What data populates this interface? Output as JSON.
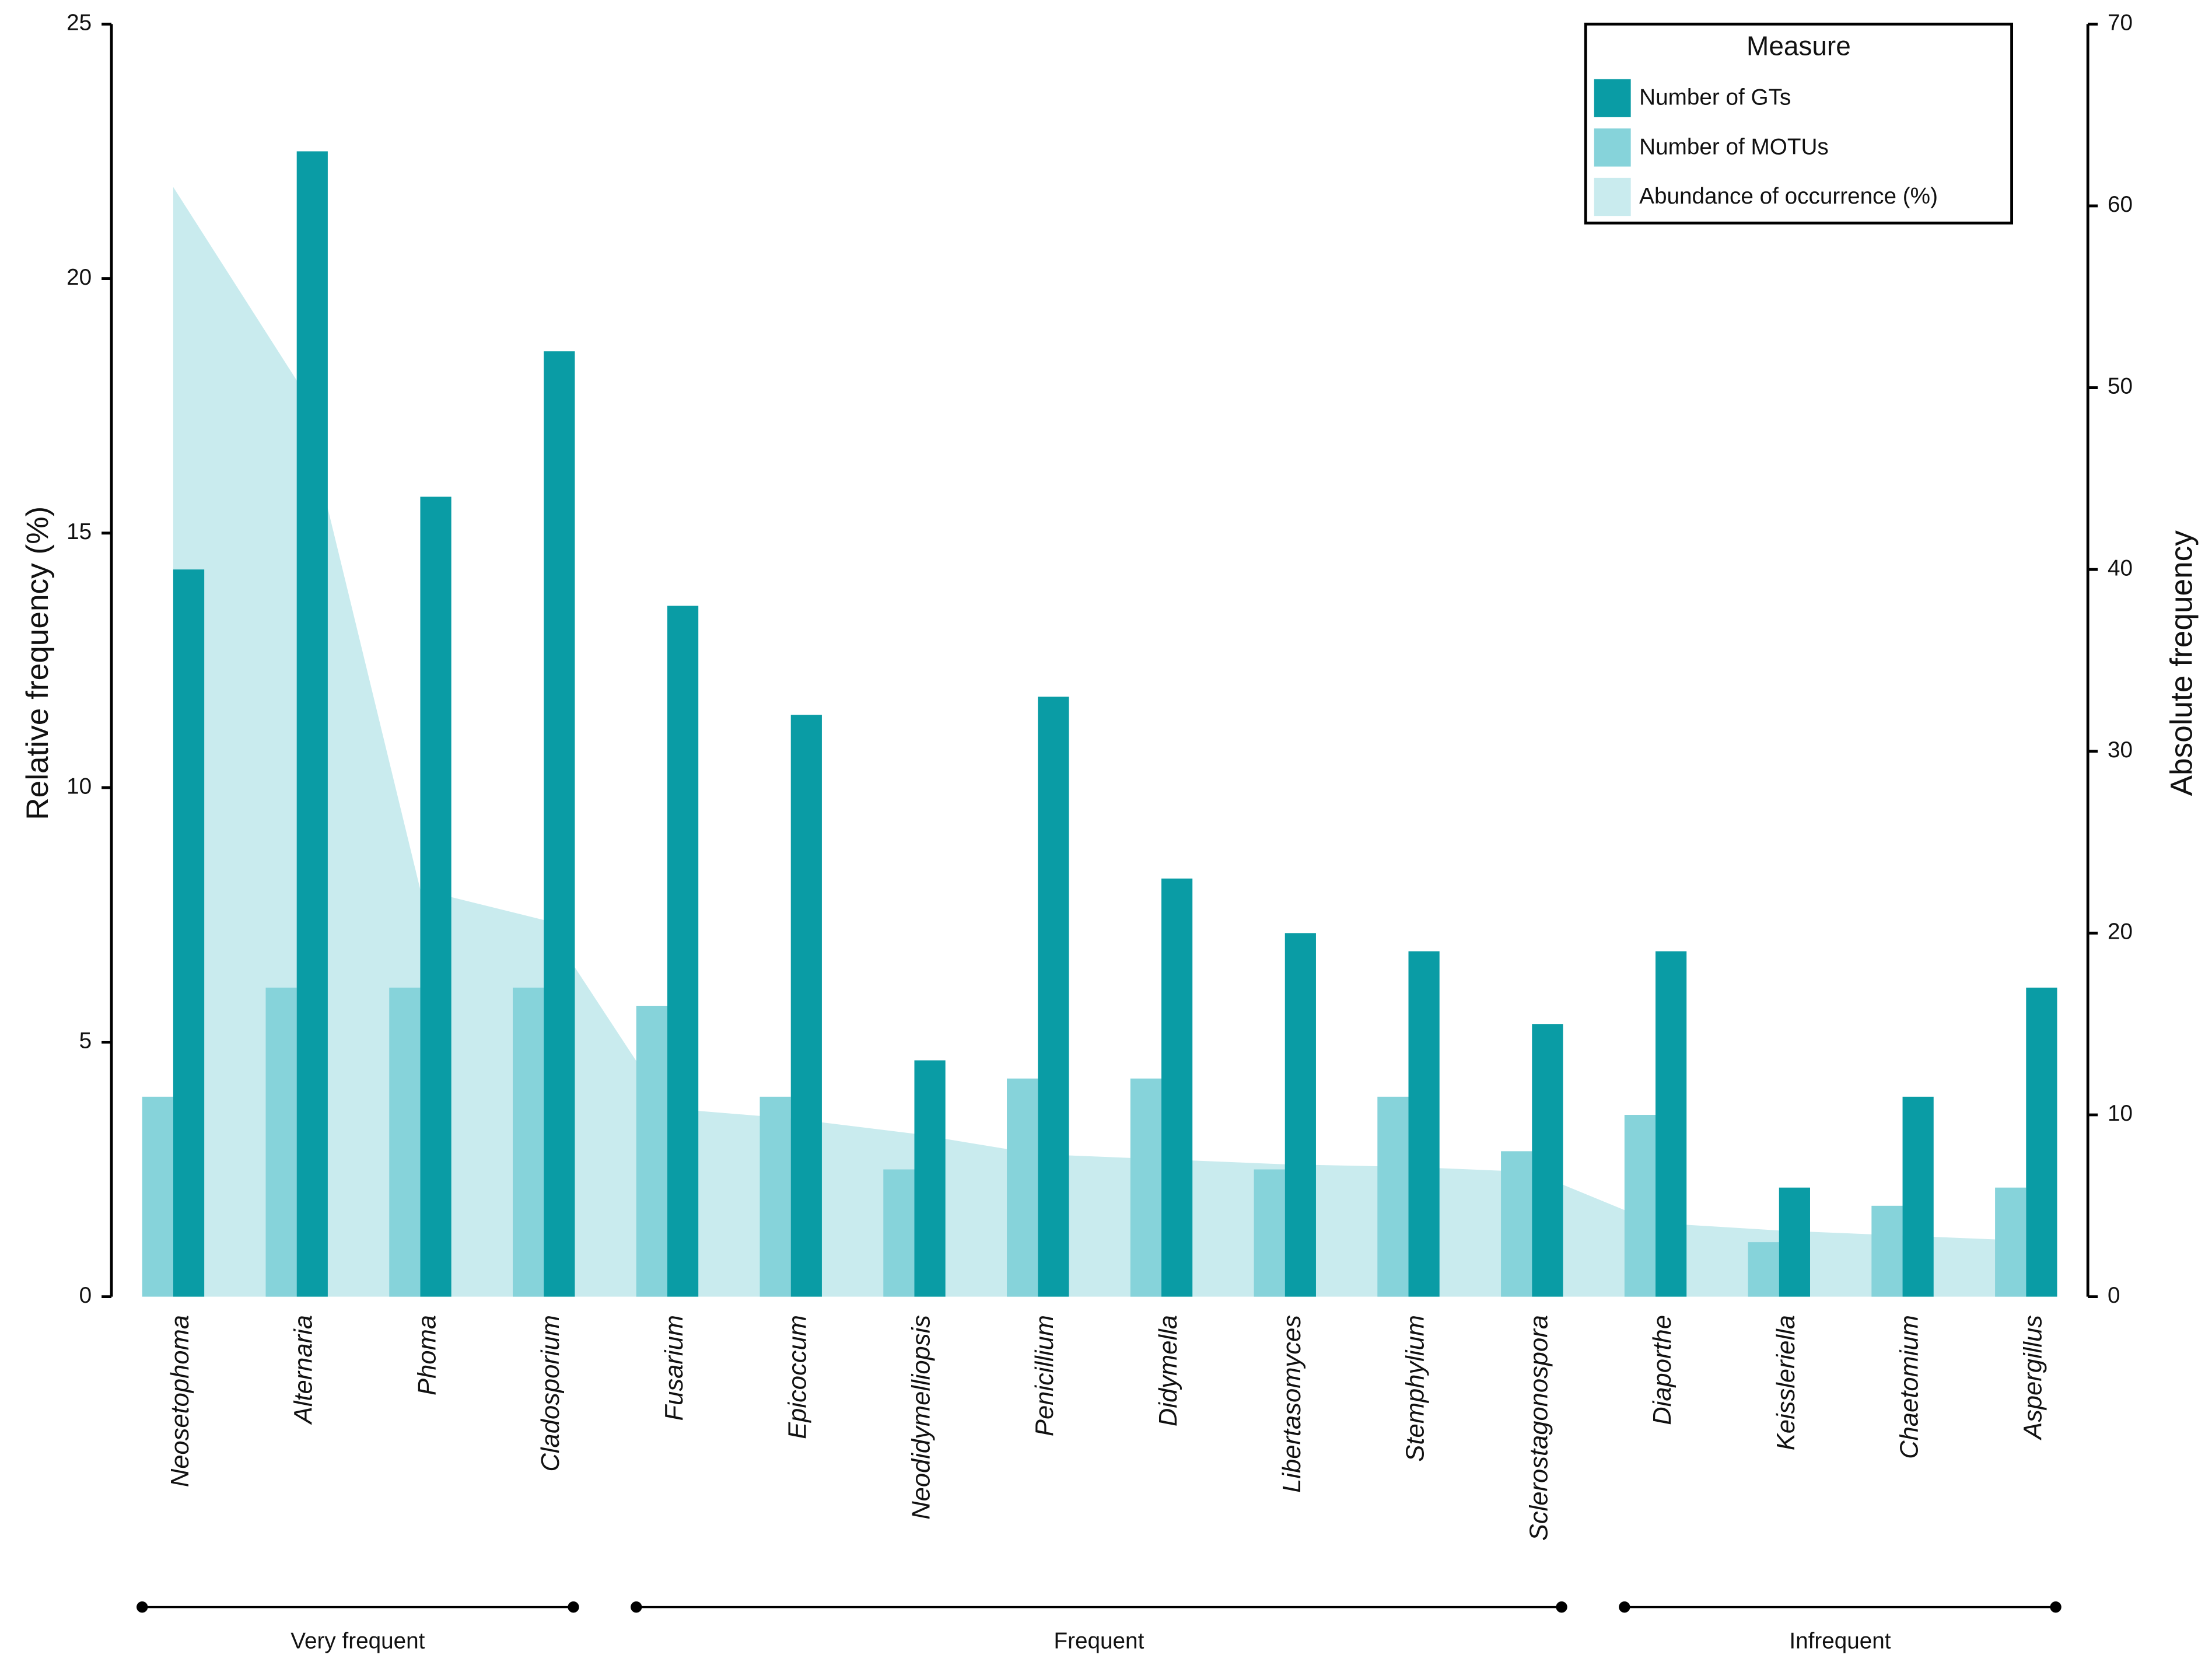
{
  "chart_data": {
    "type": "bar",
    "y_label": "Relative frequency (%)",
    "y2_label": "Absolute frequency",
    "categories": [
      "Neosetophoma",
      "Alternaria",
      "Phoma",
      "Cladosporium",
      "Fusarium",
      "Epicoccum",
      "Neodidymelliopsis",
      "Penicillium",
      "Didymella",
      "Libertasomyces",
      "Stemphylium",
      "Sclerostagonospora",
      "Diaporthe",
      "Keissleriella",
      "Chaetomium",
      "Aspergillus"
    ],
    "series": [
      {
        "name": "Number of GTs",
        "color": "#0a9ca5",
        "axis": "y2",
        "values": [
          40,
          63,
          44,
          52,
          38,
          32,
          13,
          33,
          23,
          20,
          19,
          15,
          19,
          6,
          11,
          17
        ]
      },
      {
        "name": "Number of MOTUs",
        "color": "#86d3da",
        "axis": "y2",
        "values": [
          11,
          17,
          17,
          17,
          16,
          11,
          7,
          12,
          12,
          7,
          11,
          8,
          10,
          3,
          5,
          6
        ]
      },
      {
        "name": "Abundance of occurrence (%)",
        "color": "#c9ebee",
        "type": "area",
        "values": [
          21.8,
          18.0,
          8.0,
          7.4,
          3.7,
          3.5,
          3.2,
          2.8,
          2.7,
          2.6,
          2.55,
          2.45,
          1.45,
          1.3,
          1.2,
          1.1
        ]
      }
    ],
    "ylim": [
      0,
      25
    ],
    "yticks": [
      0,
      5,
      10,
      15,
      20,
      25
    ],
    "y2lim": [
      0,
      70
    ],
    "y2ticks": [
      0,
      10,
      20,
      30,
      40,
      50,
      60,
      70
    ],
    "legend_title": "Measure",
    "legend_position": "top-right",
    "groups": [
      {
        "label": "Very frequent",
        "count": 4
      },
      {
        "label": "Frequent",
        "count": 8
      },
      {
        "label": "Infrequent",
        "count": 4
      }
    ]
  }
}
